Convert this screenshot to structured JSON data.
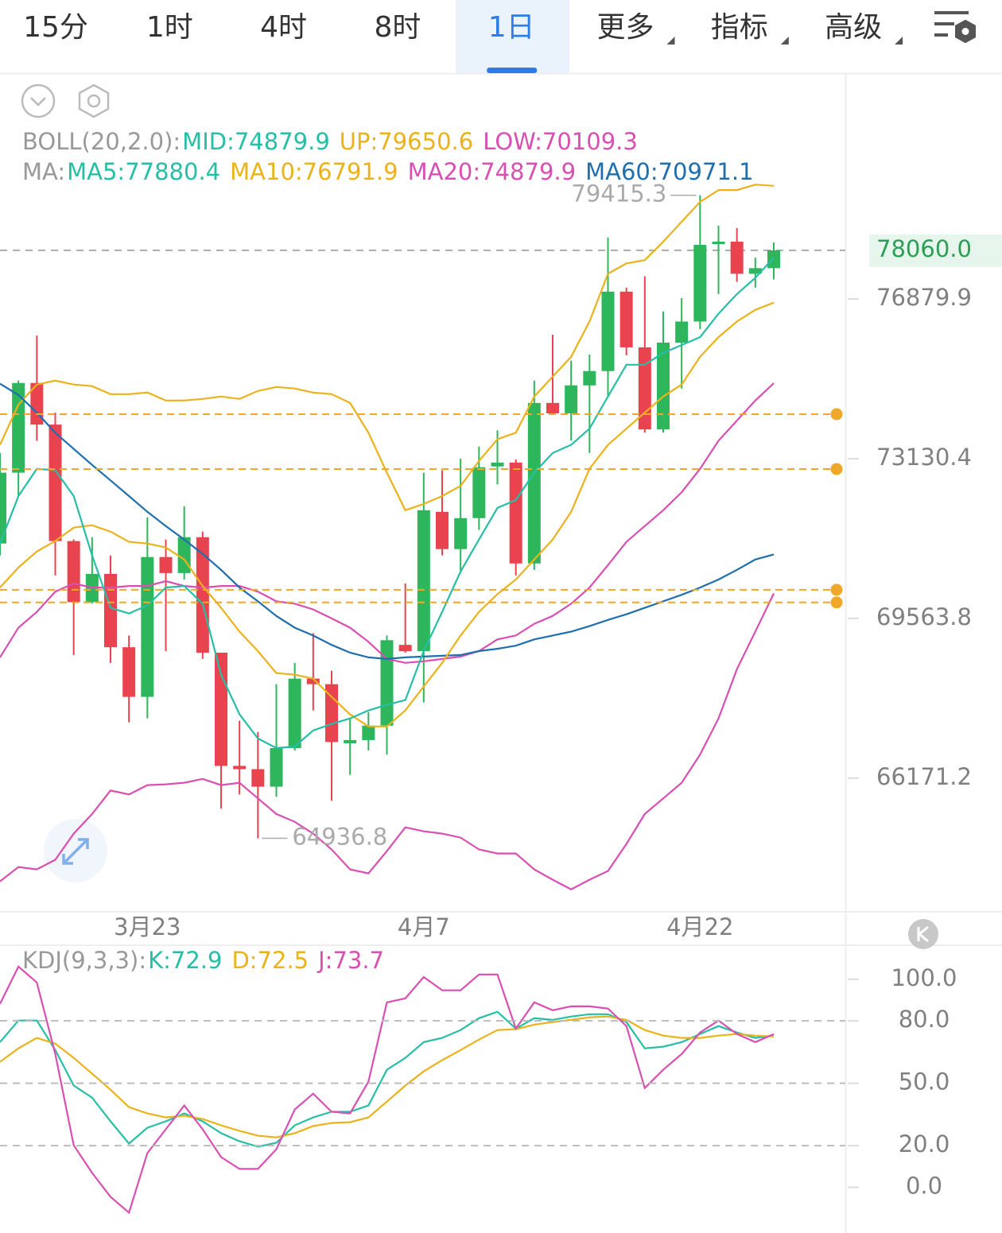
{
  "tabs": [
    {
      "label": "15分"
    },
    {
      "label": "1时"
    },
    {
      "label": "4时"
    },
    {
      "label": "8时"
    },
    {
      "label": "1日",
      "active": true
    },
    {
      "label": "更多",
      "dropdown": true
    },
    {
      "label": "指标",
      "dropdown": true
    },
    {
      "label": "高级",
      "dropdown": true
    }
  ],
  "chart_data": [
    {
      "type": "candlestick",
      "log": true,
      "categories": [
        null,
        null,
        null,
        null,
        null,
        null,
        null,
        null,
        "3月23",
        null,
        null,
        null,
        null,
        null,
        null,
        null,
        null,
        null,
        null,
        null,
        null,
        null,
        null,
        "4月7",
        null,
        null,
        null,
        null,
        null,
        null,
        null,
        null,
        null,
        null,
        null,
        null,
        null,
        null,
        "4月22",
        null,
        null,
        null,
        null
      ],
      "open": [
        71214,
        72811,
        74884,
        73915,
        71268,
        69919,
        70540,
        68939,
        67876,
        70913,
        70558,
        71356,
        68821,
        66425,
        66357,
        65994,
        66796,
        68264,
        68146,
        66897,
        66964,
        67268,
        68990,
        68855,
        71924,
        71090,
        71782,
        72953,
        73042,
        70771,
        74418,
        74176,
        74828,
        75164,
        77056,
        75724,
        73803,
        75836,
        76339,
        78213,
        78272,
        77488,
        77625
      ],
      "high": [
        73262,
        74940,
        76003,
        74194,
        71304,
        71356,
        70948,
        69193,
        71800,
        71304,
        72048,
        71480,
        68821,
        67370,
        67133,
        68146,
        68602,
        69243,
        68433,
        67420,
        67555,
        69193,
        70327,
        72811,
        72864,
        73130,
        73411,
        73784,
        73113,
        74940,
        76022,
        75407,
        75556,
        78370,
        77154,
        77429,
        76581,
        76900,
        79415.3,
        78664,
        78605,
        77880,
        78252
      ],
      "low": [
        70948,
        72279,
        73542,
        70505,
        68770,
        69884,
        68602,
        67336,
        67420,
        68855,
        70416,
        68686,
        65545,
        65834,
        64936.8,
        65786,
        66745,
        67589,
        65705,
        66239,
        66745,
        66661,
        68821,
        67758,
        70948,
        70558,
        71516,
        72545,
        70505,
        70629,
        74138,
        73542,
        73262,
        74567,
        75537,
        73728,
        73728,
        74754,
        76153,
        76998,
        77292,
        77154,
        77350
      ],
      "close": [
        72811,
        74884,
        73915,
        71268,
        69919,
        70540,
        68939,
        67876,
        70913,
        70558,
        71356,
        68821,
        66425,
        66357,
        65994,
        66796,
        68264,
        68146,
        66923,
        66964,
        67268,
        69091,
        68855,
        71960,
        71090,
        71782,
        72935,
        73042,
        70771,
        74418,
        74176,
        74828,
        75164,
        77056,
        75724,
        73803,
        75836,
        76339,
        78193,
        78272,
        77488,
        77625,
        78060.0
      ],
      "up_color": "#2eb65c",
      "down_color": "#e8434f",
      "ylim": [
        63490,
        82450
      ],
      "yticks": [
        76879.9,
        73130.4,
        69563.8,
        66171.2
      ],
      "last_price": {
        "value": 78060,
        "label": "78060.0"
      },
      "price_lines": [
        74156,
        72894,
        70189,
        69913
      ],
      "price_line_color": "#f0a82a",
      "high_marker": 79415.3,
      "low_marker": 64936.8,
      "legend_rows": [
        {
          "label": "BOLL(20,2.0):",
          "items": [
            {
              "text": "MID:74879.9",
              "color": "#26bfa6"
            },
            {
              "text": "UP:79650.6",
              "color": "#ebb21c"
            },
            {
              "text": "LOW:70109.3",
              "color": "#d94fb2"
            }
          ]
        },
        {
          "label": "MA:",
          "items": [
            {
              "text": "MA5:77880.4",
              "color": "#26bfa6"
            },
            {
              "text": "MA10:76791.9",
              "color": "#ebb21c"
            },
            {
              "text": "MA20:74879.9",
              "color": "#d94fb2"
            },
            {
              "text": "MA60:70971.1",
              "color": "#1f6fae"
            }
          ]
        }
      ],
      "lines": [
        {
          "color": "#ebb21c",
          "values": [
            73448,
            74381,
            74847,
            74940,
            74847,
            74810,
            74623,
            74623,
            74660,
            74474,
            74474,
            74511,
            74567,
            74511,
            74698,
            74791,
            74754,
            74660,
            74623,
            74418,
            73728,
            72811,
            71960,
            72102,
            72279,
            72510,
            73077,
            73579,
            73728,
            74567,
            75034,
            75500,
            76339,
            77488,
            77742,
            77821,
            78272,
            78762,
            79252,
            79546,
            79546,
            79683,
            79650.6
          ]
        },
        {
          "color": "#d94fb2",
          "values": [
            64067,
            64356,
            64308,
            64501,
            65031,
            65432,
            65914,
            65834,
            66027,
            66043,
            66075,
            66155,
            66027,
            66075,
            65753,
            65432,
            65272,
            65031,
            64710,
            64308,
            64228,
            64677,
            65159,
            65079,
            65031,
            64950,
            64710,
            64629,
            64629,
            64308,
            64099,
            63907,
            64099,
            64276,
            64822,
            65432,
            65753,
            66075,
            66661,
            67420,
            68467,
            69277,
            70109.3
          ]
        },
        {
          "color": "#d94fb2",
          "values": [
            68720,
            69361,
            69706,
            70150,
            70327,
            70238,
            70238,
            70274,
            70274,
            70380,
            70274,
            70238,
            70274,
            70274,
            70150,
            69937,
            69884,
            69759,
            69564,
            69361,
            69057,
            68686,
            68602,
            68636,
            68686,
            68737,
            68855,
            69108,
            69193,
            69446,
            69618,
            69884,
            70238,
            70735,
            71250,
            71604,
            71960,
            72368,
            72900,
            73542,
            74008,
            74474,
            74879.9
          ]
        },
        {
          "color": "#1f6fae",
          "values": [
            74866,
            74605,
            74194,
            73728,
            73355,
            72988,
            72634,
            72279,
            71924,
            71604,
            71303,
            70984,
            70629,
            70238,
            69937,
            69618,
            69361,
            69193,
            68990,
            68821,
            68720,
            68686,
            68720,
            68737,
            68754,
            68771,
            68855,
            68906,
            68973,
            69108,
            69193,
            69277,
            69395,
            69530,
            69653,
            69795,
            69937,
            70079,
            70238,
            70416,
            70629,
            70859,
            70971.1
          ]
        },
        {
          "color": "#ebb21c",
          "values": [
            70238,
            70682,
            71037,
            71268,
            71569,
            71622,
            71480,
            71250,
            71214,
            71125,
            70859,
            70274,
            69795,
            69277,
            68855,
            68382,
            68349,
            68264,
            67876,
            67505,
            67251,
            67251,
            67589,
            68095,
            68602,
            69193,
            69706,
            70096,
            70416,
            70859,
            71303,
            71924,
            72900,
            73448,
            73821,
            74194,
            74567,
            74847,
            75500,
            75966,
            76339,
            76619,
            76791.9
          ]
        },
        {
          "color": "#26bfa6",
          "values": [
            71214,
            72279,
            72900,
            72864,
            72279,
            70948,
            69795,
            69671,
            69848,
            70238,
            70274,
            69884,
            68349,
            67505,
            66998,
            66796,
            66829,
            67167,
            67302,
            67420,
            67589,
            67707,
            67808,
            68855,
            69706,
            70593,
            71303,
            72012,
            72190,
            72811,
            73262,
            73448,
            73821,
            74567,
            75313,
            75313,
            75593,
            75780,
            75966,
            76526,
            76998,
            77390,
            77880.4
          ]
        }
      ]
    },
    {
      "type": "line",
      "legend_label": "KDJ(9,3,3):",
      "series": [
        {
          "name": "K:72.9",
          "color": "#26bfa6",
          "values": [
            69.8,
            80.2,
            80.2,
            66.0,
            48.9,
            43.1,
            31.7,
            21.0,
            28.6,
            31.7,
            35.5,
            31.7,
            26.0,
            22.1,
            19.5,
            21.4,
            29.8,
            33.6,
            36.3,
            36.3,
            39.3,
            56.5,
            62.2,
            69.8,
            71.8,
            75.6,
            81.3,
            84.4,
            76.3,
            81.3,
            80.5,
            82.1,
            83.2,
            83.2,
            79.4,
            66.8,
            67.6,
            69.8,
            73.7,
            77.5,
            74.4,
            71.8,
            72.9
          ]
        },
        {
          "name": "D:72.5",
          "color": "#ebb21c",
          "values": [
            60.3,
            66.8,
            71.8,
            69.1,
            62.2,
            54.6,
            46.9,
            38.5,
            35.5,
            33.6,
            34.4,
            32.8,
            29.8,
            27.1,
            24.8,
            24.0,
            26.0,
            29.4,
            30.9,
            31.3,
            33.6,
            41.2,
            48.9,
            55.7,
            61.1,
            66.0,
            71.0,
            75.6,
            76.0,
            78.2,
            79.4,
            80.5,
            81.7,
            82.1,
            80.5,
            75.6,
            72.9,
            71.8,
            71.8,
            72.9,
            73.7,
            72.9,
            72.5
          ]
        },
        {
          "name": "J:73.7",
          "color": "#d94fb2",
          "values": [
            88.2,
            106.1,
            98.5,
            64.1,
            20.2,
            6.9,
            -4.6,
            -12.2,
            16.4,
            27.9,
            39.3,
            27.9,
            14.5,
            8.8,
            8.8,
            18.3,
            37.4,
            45.0,
            36.3,
            35.5,
            50.8,
            88.9,
            90.8,
            101.1,
            94.7,
            94.7,
            102.3,
            102.3,
            76.3,
            88.9,
            85.1,
            87.0,
            87.0,
            85.9,
            77.5,
            47.7,
            56.5,
            64.1,
            74.4,
            80.2,
            73.7,
            69.8,
            73.7
          ]
        }
      ],
      "ylim": [
        -22,
        116
      ],
      "yticks": [
        {
          "value": 100,
          "label": "100.0"
        },
        {
          "value": 80,
          "label": "80.0"
        },
        {
          "value": 50,
          "label": "50.0"
        },
        {
          "value": 20,
          "label": "20.0"
        },
        {
          "value": 0,
          "label": "0.0"
        }
      ],
      "dashed_levels": [
        80,
        50,
        20
      ]
    }
  ]
}
